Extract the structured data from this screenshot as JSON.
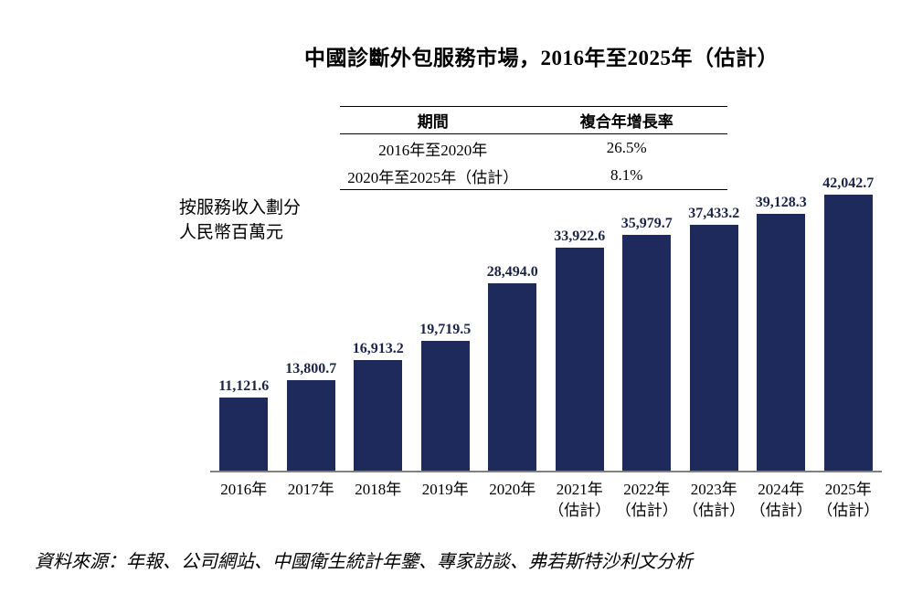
{
  "title": "中國診斷外包服務市場，2016年至2025年（估計）",
  "cagr_table": {
    "headers": [
      "期間",
      "複合年增長率"
    ],
    "rows": [
      {
        "period": "2016年至2020年",
        "cagr": "26.5%"
      },
      {
        "period": "2020年至2025年（估計）",
        "cagr": "8.1%"
      }
    ]
  },
  "y_axis": {
    "line1": "按服務收入劃分",
    "line2": "人民幣百萬元"
  },
  "source": "資料來源：年報、公司網站、中國衛生統計年鑒、專家訪談、弗若斯特沙利文分析",
  "colors": {
    "bar": "#1F2A5C",
    "value_label": "#1B2447",
    "baseline": "#808080"
  },
  "chart_data": {
    "type": "bar",
    "title": "中國診斷外包服務市場，2016年至2025年（估計）",
    "ylabel": "按服務收入劃分 人民幣百萬元",
    "xlabel": "",
    "ylim": [
      0,
      42042.7
    ],
    "grid": false,
    "legend": "none",
    "categories": [
      {
        "year": "2016年",
        "note": ""
      },
      {
        "year": "2017年",
        "note": ""
      },
      {
        "year": "2018年",
        "note": ""
      },
      {
        "year": "2019年",
        "note": ""
      },
      {
        "year": "2020年",
        "note": ""
      },
      {
        "year": "2021年",
        "note": "（估計）"
      },
      {
        "year": "2022年",
        "note": "（估計）"
      },
      {
        "year": "2023年",
        "note": "（估計）"
      },
      {
        "year": "2024年",
        "note": "（估計）"
      },
      {
        "year": "2025年",
        "note": "（估計）"
      }
    ],
    "values": [
      11121.6,
      13800.7,
      16913.2,
      19719.5,
      28494.0,
      33922.6,
      35979.7,
      37433.2,
      39128.3,
      42042.7
    ],
    "value_labels": [
      "11,121.6",
      "13,800.7",
      "16,913.2",
      "19,719.5",
      "28,494.0",
      "33,922.6",
      "35,979.7",
      "37,433.2",
      "39,128.3",
      "42,042.7"
    ],
    "cagr_annotations": [
      {
        "period": "2016年至2020年",
        "cagr_pct": 26.5
      },
      {
        "period": "2020年至2025年（估計）",
        "cagr_pct": 8.1
      }
    ]
  }
}
